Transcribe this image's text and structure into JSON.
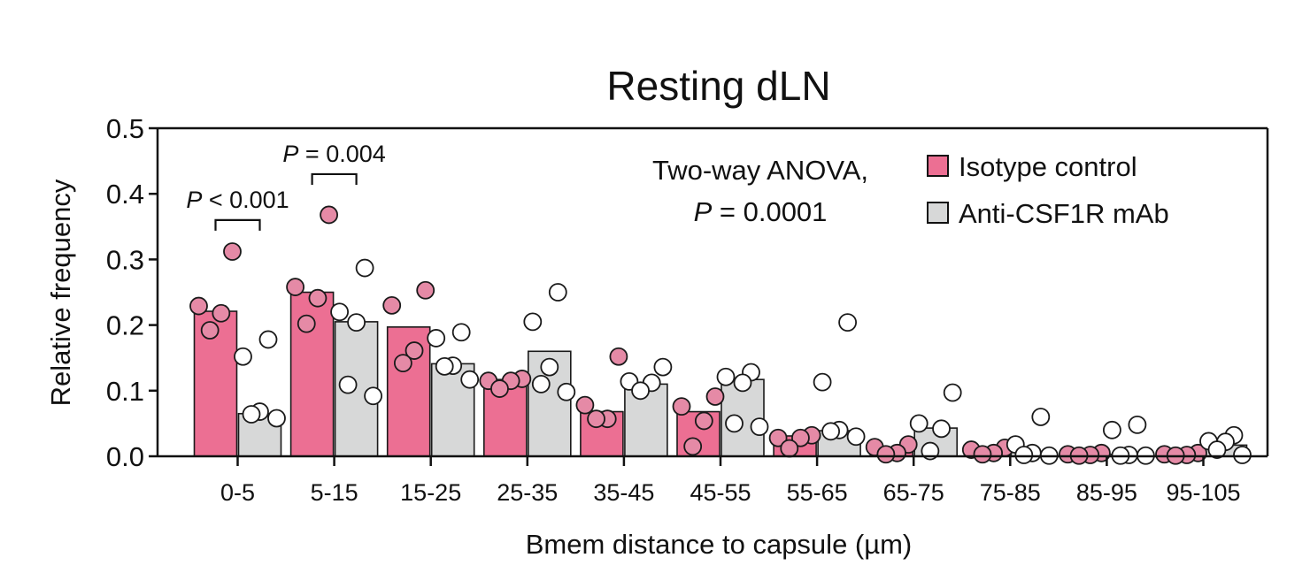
{
  "chart_data": {
    "type": "bar",
    "title": "Resting dLN",
    "xlabel": "Bmem distance to capsule (µm)",
    "ylabel": "Relative frequency",
    "ylim": [
      0,
      0.5
    ],
    "yticks": [
      "0.0",
      "0.1",
      "0.2",
      "0.3",
      "0.4",
      "0.5"
    ],
    "grid": false,
    "legend_position": "top-right",
    "categories": [
      "0-5",
      "5-15",
      "15-25",
      "25-35",
      "35-45",
      "45-55",
      "55-65",
      "65-75",
      "75-85",
      "85-95",
      "95-105"
    ],
    "series": [
      {
        "name": "Isotype control",
        "color": "#ec6f93",
        "point_color": "#e58aa6",
        "values": [
          0.221,
          0.25,
          0.197,
          0.117,
          0.068,
          0.068,
          0.031,
          0.01,
          0.008,
          0.002,
          0.002
        ],
        "points": [
          [
            0.312,
            0.229,
            0.218,
            0.192
          ],
          [
            0.368,
            0.258,
            0.241,
            0.202
          ],
          [
            0.253,
            0.23,
            0.161,
            0.142
          ],
          [
            0.118,
            0.115,
            0.115,
            0.103
          ],
          [
            0.152,
            0.078,
            0.057,
            0.057
          ],
          [
            0.091,
            0.076,
            0.054,
            0.015
          ],
          [
            0.032,
            0.028,
            0.028,
            0.012
          ],
          [
            0.018,
            0.014,
            0.005,
            0.003
          ],
          [
            0.013,
            0.01,
            0.005,
            0.003
          ],
          [
            0.005,
            0.003,
            0.002,
            0.001
          ],
          [
            0.005,
            0.003,
            0.002,
            0.001
          ]
        ]
      },
      {
        "name": "Anti-CSF1R mAb",
        "color": "#d7d8d8",
        "point_color": "#ffffff",
        "values": [
          0.065,
          0.205,
          0.141,
          0.16,
          0.11,
          0.117,
          0.039,
          0.043,
          0.006,
          0.003,
          0.017
        ],
        "points": [
          [
            0.178,
            0.152,
            0.068,
            0.064,
            0.058
          ],
          [
            0.287,
            0.22,
            0.204,
            0.109,
            0.092
          ],
          [
            0.189,
            0.18,
            0.138,
            0.137,
            0.117
          ],
          [
            0.25,
            0.205,
            0.136,
            0.11,
            0.098
          ],
          [
            0.136,
            0.114,
            0.112,
            0.1
          ],
          [
            0.128,
            0.121,
            0.112,
            0.05,
            0.045
          ],
          [
            0.204,
            0.113,
            0.04,
            0.038,
            0.03
          ],
          [
            0.097,
            0.05,
            0.042,
            0.008
          ],
          [
            0.06,
            0.018,
            0.005,
            0.002,
            0.001
          ],
          [
            0.048,
            0.04,
            0.002,
            0.001,
            0.001
          ],
          [
            0.032,
            0.023,
            0.022,
            0.01,
            0.002
          ]
        ]
      }
    ],
    "annotations": {
      "anova_line1": "Two-way ANOVA,",
      "anova_p_italic": "P",
      "anova_p_rest": " = 0.0001",
      "brackets": [
        {
          "category_index": 0,
          "p_italic": "P",
          "p_rest": " < 0.001",
          "y": 0.36
        },
        {
          "category_index": 1,
          "p_italic": "P",
          "p_rest": " = 0.004",
          "y": 0.43
        }
      ]
    }
  }
}
